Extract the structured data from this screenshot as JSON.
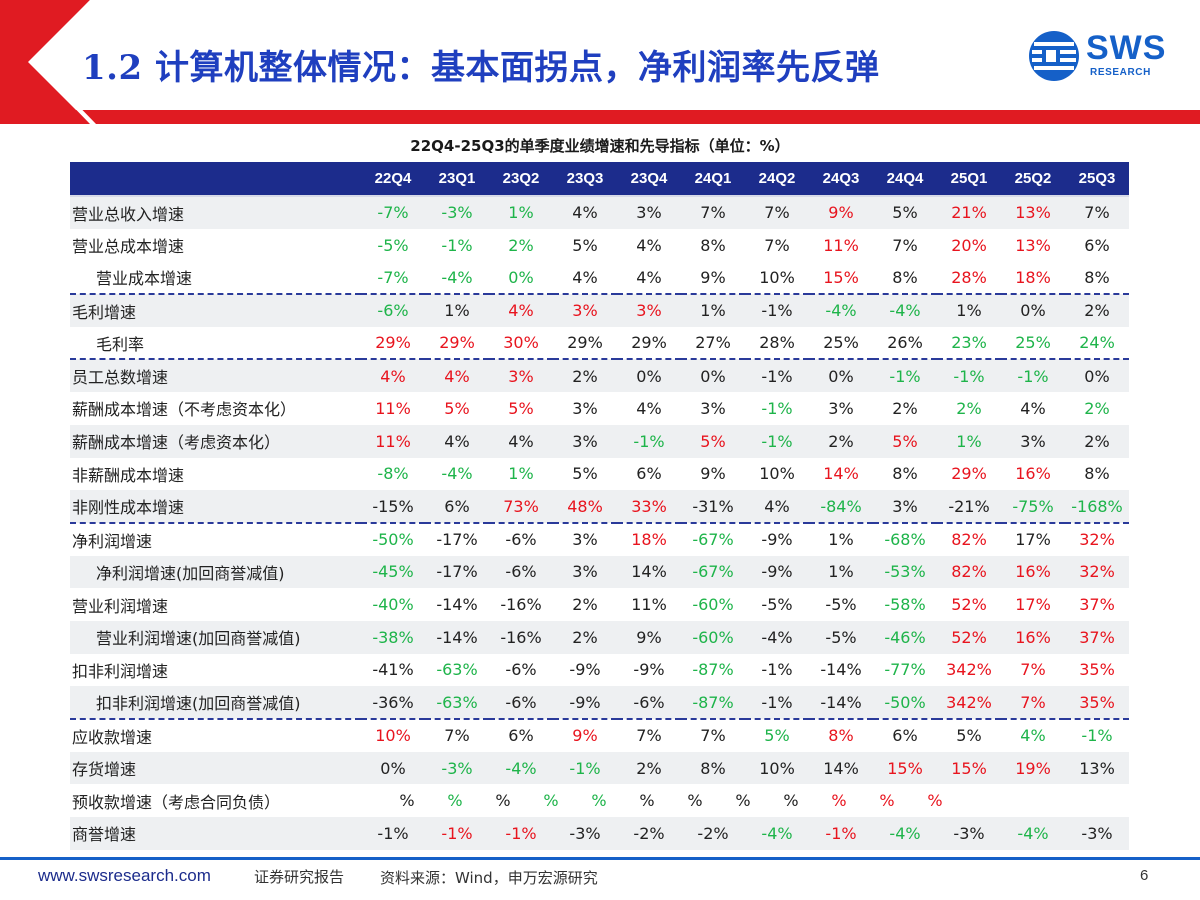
{
  "title": "1.2 计算机整体情况：基本面拐点，净利润率先反弹",
  "logo": {
    "main": "SWS",
    "sub": "RESEARCH"
  },
  "table_title": "22Q4-25Q3的单季度业绩增速和先导指标（单位：%）",
  "columns": [
    "22Q4",
    "23Q1",
    "23Q2",
    "23Q3",
    "23Q4",
    "24Q1",
    "24Q2",
    "24Q3",
    "24Q4",
    "25Q1",
    "25Q2",
    "25Q3"
  ],
  "rows": [
    {
      "label": "营业总收入增速",
      "indent": false,
      "shade": true,
      "dash": false,
      "cells": [
        {
          "v": "-7%",
          "c": "g"
        },
        {
          "v": "-3%",
          "c": "g"
        },
        {
          "v": "1%",
          "c": "g"
        },
        {
          "v": "4%",
          "c": "n"
        },
        {
          "v": "3%",
          "c": "n"
        },
        {
          "v": "7%",
          "c": "n"
        },
        {
          "v": "7%",
          "c": "n"
        },
        {
          "v": "9%",
          "c": "r"
        },
        {
          "v": "5%",
          "c": "n"
        },
        {
          "v": "21%",
          "c": "r"
        },
        {
          "v": "13%",
          "c": "r"
        },
        {
          "v": "7%",
          "c": "n"
        }
      ]
    },
    {
      "label": "营业总成本增速",
      "indent": false,
      "shade": false,
      "dash": false,
      "cells": [
        {
          "v": "-5%",
          "c": "g"
        },
        {
          "v": "-1%",
          "c": "g"
        },
        {
          "v": "2%",
          "c": "g"
        },
        {
          "v": "5%",
          "c": "n"
        },
        {
          "v": "4%",
          "c": "n"
        },
        {
          "v": "8%",
          "c": "n"
        },
        {
          "v": "7%",
          "c": "n"
        },
        {
          "v": "11%",
          "c": "r"
        },
        {
          "v": "7%",
          "c": "n"
        },
        {
          "v": "20%",
          "c": "r"
        },
        {
          "v": "13%",
          "c": "r"
        },
        {
          "v": "6%",
          "c": "n"
        }
      ]
    },
    {
      "label": "营业成本增速",
      "indent": true,
      "shade": false,
      "dash": true,
      "cells": [
        {
          "v": "-7%",
          "c": "g"
        },
        {
          "v": "-4%",
          "c": "g"
        },
        {
          "v": "0%",
          "c": "g"
        },
        {
          "v": "4%",
          "c": "n"
        },
        {
          "v": "4%",
          "c": "n"
        },
        {
          "v": "9%",
          "c": "n"
        },
        {
          "v": "10%",
          "c": "n"
        },
        {
          "v": "15%",
          "c": "r"
        },
        {
          "v": "8%",
          "c": "n"
        },
        {
          "v": "28%",
          "c": "r"
        },
        {
          "v": "18%",
          "c": "r"
        },
        {
          "v": "8%",
          "c": "n"
        }
      ]
    },
    {
      "label": "毛利增速",
      "indent": false,
      "shade": true,
      "dash": false,
      "cells": [
        {
          "v": "-6%",
          "c": "g"
        },
        {
          "v": "1%",
          "c": "n"
        },
        {
          "v": "4%",
          "c": "r"
        },
        {
          "v": "3%",
          "c": "r"
        },
        {
          "v": "3%",
          "c": "r"
        },
        {
          "v": "1%",
          "c": "n"
        },
        {
          "v": "-1%",
          "c": "n"
        },
        {
          "v": "-4%",
          "c": "g"
        },
        {
          "v": "-4%",
          "c": "g"
        },
        {
          "v": "1%",
          "c": "n"
        },
        {
          "v": "0%",
          "c": "n"
        },
        {
          "v": "2%",
          "c": "n"
        }
      ]
    },
    {
      "label": "毛利率",
      "indent": true,
      "shade": false,
      "dash": true,
      "cells": [
        {
          "v": "29%",
          "c": "r"
        },
        {
          "v": "29%",
          "c": "r"
        },
        {
          "v": "30%",
          "c": "r"
        },
        {
          "v": "29%",
          "c": "n"
        },
        {
          "v": "29%",
          "c": "n"
        },
        {
          "v": "27%",
          "c": "n"
        },
        {
          "v": "28%",
          "c": "n"
        },
        {
          "v": "25%",
          "c": "n"
        },
        {
          "v": "26%",
          "c": "n"
        },
        {
          "v": "23%",
          "c": "g"
        },
        {
          "v": "25%",
          "c": "g"
        },
        {
          "v": "24%",
          "c": "g"
        }
      ]
    },
    {
      "label": "员工总数增速",
      "indent": false,
      "shade": true,
      "dash": false,
      "cells": [
        {
          "v": "4%",
          "c": "r"
        },
        {
          "v": "4%",
          "c": "r"
        },
        {
          "v": "3%",
          "c": "r"
        },
        {
          "v": "2%",
          "c": "n"
        },
        {
          "v": "0%",
          "c": "n"
        },
        {
          "v": "0%",
          "c": "n"
        },
        {
          "v": "-1%",
          "c": "n"
        },
        {
          "v": "0%",
          "c": "n"
        },
        {
          "v": "-1%",
          "c": "g"
        },
        {
          "v": "-1%",
          "c": "g"
        },
        {
          "v": "-1%",
          "c": "g"
        },
        {
          "v": "0%",
          "c": "n"
        }
      ]
    },
    {
      "label": "薪酬成本增速（不考虑资本化）",
      "indent": false,
      "shade": false,
      "dash": false,
      "cells": [
        {
          "v": "11%",
          "c": "r"
        },
        {
          "v": "5%",
          "c": "r"
        },
        {
          "v": "5%",
          "c": "r"
        },
        {
          "v": "3%",
          "c": "n"
        },
        {
          "v": "4%",
          "c": "n"
        },
        {
          "v": "3%",
          "c": "n"
        },
        {
          "v": "-1%",
          "c": "g"
        },
        {
          "v": "3%",
          "c": "n"
        },
        {
          "v": "2%",
          "c": "n"
        },
        {
          "v": "2%",
          "c": "g"
        },
        {
          "v": "4%",
          "c": "n"
        },
        {
          "v": "2%",
          "c": "g"
        }
      ]
    },
    {
      "label": "薪酬成本增速（考虑资本化）",
      "indent": false,
      "shade": true,
      "dash": false,
      "cells": [
        {
          "v": "11%",
          "c": "r"
        },
        {
          "v": "4%",
          "c": "n"
        },
        {
          "v": "4%",
          "c": "n"
        },
        {
          "v": "3%",
          "c": "n"
        },
        {
          "v": "-1%",
          "c": "g"
        },
        {
          "v": "5%",
          "c": "r"
        },
        {
          "v": "-1%",
          "c": "g"
        },
        {
          "v": "2%",
          "c": "n"
        },
        {
          "v": "5%",
          "c": "r"
        },
        {
          "v": "1%",
          "c": "g"
        },
        {
          "v": "3%",
          "c": "n"
        },
        {
          "v": "2%",
          "c": "n"
        }
      ]
    },
    {
      "label": "非薪酬成本增速",
      "indent": false,
      "shade": false,
      "dash": false,
      "cells": [
        {
          "v": "-8%",
          "c": "g"
        },
        {
          "v": "-4%",
          "c": "g"
        },
        {
          "v": "1%",
          "c": "g"
        },
        {
          "v": "5%",
          "c": "n"
        },
        {
          "v": "6%",
          "c": "n"
        },
        {
          "v": "9%",
          "c": "n"
        },
        {
          "v": "10%",
          "c": "n"
        },
        {
          "v": "14%",
          "c": "r"
        },
        {
          "v": "8%",
          "c": "n"
        },
        {
          "v": "29%",
          "c": "r"
        },
        {
          "v": "16%",
          "c": "r"
        },
        {
          "v": "8%",
          "c": "n"
        }
      ]
    },
    {
      "label": "非刚性成本增速",
      "indent": false,
      "shade": true,
      "dash": true,
      "cells": [
        {
          "v": "-15%",
          "c": "n"
        },
        {
          "v": "6%",
          "c": "n"
        },
        {
          "v": "73%",
          "c": "r"
        },
        {
          "v": "48%",
          "c": "r"
        },
        {
          "v": "33%",
          "c": "r"
        },
        {
          "v": "-31%",
          "c": "n"
        },
        {
          "v": "4%",
          "c": "n"
        },
        {
          "v": "-84%",
          "c": "g"
        },
        {
          "v": "3%",
          "c": "n"
        },
        {
          "v": "-21%",
          "c": "n"
        },
        {
          "v": "-75%",
          "c": "g"
        },
        {
          "v": "-168%",
          "c": "g"
        }
      ]
    },
    {
      "label": "净利润增速",
      "indent": false,
      "shade": false,
      "dash": false,
      "cells": [
        {
          "v": "-50%",
          "c": "g"
        },
        {
          "v": "-17%",
          "c": "n"
        },
        {
          "v": "-6%",
          "c": "n"
        },
        {
          "v": "3%",
          "c": "n"
        },
        {
          "v": "18%",
          "c": "r"
        },
        {
          "v": "-67%",
          "c": "g"
        },
        {
          "v": "-9%",
          "c": "n"
        },
        {
          "v": "1%",
          "c": "n"
        },
        {
          "v": "-68%",
          "c": "g"
        },
        {
          "v": "82%",
          "c": "r"
        },
        {
          "v": "17%",
          "c": "n"
        },
        {
          "v": "32%",
          "c": "r"
        }
      ]
    },
    {
      "label": "净利润增速(加回商誉减值)",
      "indent": true,
      "shade": true,
      "dash": false,
      "cells": [
        {
          "v": "-45%",
          "c": "g"
        },
        {
          "v": "-17%",
          "c": "n"
        },
        {
          "v": "-6%",
          "c": "n"
        },
        {
          "v": "3%",
          "c": "n"
        },
        {
          "v": "14%",
          "c": "n"
        },
        {
          "v": "-67%",
          "c": "g"
        },
        {
          "v": "-9%",
          "c": "n"
        },
        {
          "v": "1%",
          "c": "n"
        },
        {
          "v": "-53%",
          "c": "g"
        },
        {
          "v": "82%",
          "c": "r"
        },
        {
          "v": "16%",
          "c": "r"
        },
        {
          "v": "32%",
          "c": "r"
        }
      ]
    },
    {
      "label": "营业利润增速",
      "indent": false,
      "shade": false,
      "dash": false,
      "cells": [
        {
          "v": "-40%",
          "c": "g"
        },
        {
          "v": "-14%",
          "c": "n"
        },
        {
          "v": "-16%",
          "c": "n"
        },
        {
          "v": "2%",
          "c": "n"
        },
        {
          "v": "11%",
          "c": "n"
        },
        {
          "v": "-60%",
          "c": "g"
        },
        {
          "v": "-5%",
          "c": "n"
        },
        {
          "v": "-5%",
          "c": "n"
        },
        {
          "v": "-58%",
          "c": "g"
        },
        {
          "v": "52%",
          "c": "r"
        },
        {
          "v": "17%",
          "c": "r"
        },
        {
          "v": "37%",
          "c": "r"
        }
      ]
    },
    {
      "label": "营业利润增速(加回商誉减值)",
      "indent": true,
      "shade": true,
      "dash": false,
      "cells": [
        {
          "v": "-38%",
          "c": "g"
        },
        {
          "v": "-14%",
          "c": "n"
        },
        {
          "v": "-16%",
          "c": "n"
        },
        {
          "v": "2%",
          "c": "n"
        },
        {
          "v": "9%",
          "c": "n"
        },
        {
          "v": "-60%",
          "c": "g"
        },
        {
          "v": "-4%",
          "c": "n"
        },
        {
          "v": "-5%",
          "c": "n"
        },
        {
          "v": "-46%",
          "c": "g"
        },
        {
          "v": "52%",
          "c": "r"
        },
        {
          "v": "16%",
          "c": "r"
        },
        {
          "v": "37%",
          "c": "r"
        }
      ]
    },
    {
      "label": "扣非利润增速",
      "indent": false,
      "shade": false,
      "dash": false,
      "cells": [
        {
          "v": "-41%",
          "c": "n"
        },
        {
          "v": "-63%",
          "c": "g"
        },
        {
          "v": "-6%",
          "c": "n"
        },
        {
          "v": "-9%",
          "c": "n"
        },
        {
          "v": "-9%",
          "c": "n"
        },
        {
          "v": "-87%",
          "c": "g"
        },
        {
          "v": "-1%",
          "c": "n"
        },
        {
          "v": "-14%",
          "c": "n"
        },
        {
          "v": "-77%",
          "c": "g"
        },
        {
          "v": "342%",
          "c": "r"
        },
        {
          "v": "7%",
          "c": "r"
        },
        {
          "v": "35%",
          "c": "r"
        }
      ]
    },
    {
      "label": "扣非利润增速(加回商誉减值)",
      "indent": true,
      "shade": true,
      "dash": true,
      "cells": [
        {
          "v": "-36%",
          "c": "n"
        },
        {
          "v": "-63%",
          "c": "g"
        },
        {
          "v": "-6%",
          "c": "n"
        },
        {
          "v": "-9%",
          "c": "n"
        },
        {
          "v": "-6%",
          "c": "n"
        },
        {
          "v": "-87%",
          "c": "g"
        },
        {
          "v": "-1%",
          "c": "n"
        },
        {
          "v": "-14%",
          "c": "n"
        },
        {
          "v": "-50%",
          "c": "g"
        },
        {
          "v": "342%",
          "c": "r"
        },
        {
          "v": "7%",
          "c": "r"
        },
        {
          "v": "35%",
          "c": "r"
        }
      ]
    },
    {
      "label": "应收款增速",
      "indent": false,
      "shade": false,
      "dash": false,
      "cells": [
        {
          "v": "10%",
          "c": "r"
        },
        {
          "v": "7%",
          "c": "n"
        },
        {
          "v": "6%",
          "c": "n"
        },
        {
          "v": "9%",
          "c": "r"
        },
        {
          "v": "7%",
          "c": "n"
        },
        {
          "v": "7%",
          "c": "n"
        },
        {
          "v": "5%",
          "c": "g"
        },
        {
          "v": "8%",
          "c": "r"
        },
        {
          "v": "6%",
          "c": "n"
        },
        {
          "v": "5%",
          "c": "n"
        },
        {
          "v": "4%",
          "c": "g"
        },
        {
          "v": "-1%",
          "c": "g"
        }
      ]
    },
    {
      "label": "存货增速",
      "indent": false,
      "shade": true,
      "dash": false,
      "cells": [
        {
          "v": "0%",
          "c": "n"
        },
        {
          "v": "-3%",
          "c": "g"
        },
        {
          "v": "-4%",
          "c": "g"
        },
        {
          "v": "-1%",
          "c": "g"
        },
        {
          "v": "2%",
          "c": "n"
        },
        {
          "v": "8%",
          "c": "n"
        },
        {
          "v": "10%",
          "c": "n"
        },
        {
          "v": "14%",
          "c": "n"
        },
        {
          "v": "15%",
          "c": "r"
        },
        {
          "v": "15%",
          "c": "r"
        },
        {
          "v": "19%",
          "c": "r"
        },
        {
          "v": "13%",
          "c": "n"
        }
      ]
    },
    {
      "label": "预收款增速（考虑合同负债）",
      "indent": false,
      "shade": false,
      "dash": false,
      "pcts": [
        {
          "v": "%",
          "c": "n"
        },
        {
          "v": "%",
          "c": "g"
        },
        {
          "v": "%",
          "c": "n"
        },
        {
          "v": "%",
          "c": "g"
        },
        {
          "v": "%",
          "c": "g"
        },
        {
          "v": "%",
          "c": "n"
        },
        {
          "v": "%",
          "c": "n"
        },
        {
          "v": "%",
          "c": "n"
        },
        {
          "v": "%",
          "c": "n"
        },
        {
          "v": "%",
          "c": "r"
        },
        {
          "v": "%",
          "c": "r"
        },
        {
          "v": "%",
          "c": "r"
        }
      ]
    },
    {
      "label": "商誉增速",
      "indent": false,
      "shade": true,
      "dash": false,
      "cells": [
        {
          "v": "-1%",
          "c": "n"
        },
        {
          "v": "-1%",
          "c": "r"
        },
        {
          "v": "-1%",
          "c": "r"
        },
        {
          "v": "-3%",
          "c": "n"
        },
        {
          "v": "-2%",
          "c": "n"
        },
        {
          "v": "-2%",
          "c": "n"
        },
        {
          "v": "-4%",
          "c": "g"
        },
        {
          "v": "-1%",
          "c": "r"
        },
        {
          "v": "-4%",
          "c": "g"
        },
        {
          "v": "-3%",
          "c": "n"
        },
        {
          "v": "-4%",
          "c": "g"
        },
        {
          "v": "-3%",
          "c": "n"
        }
      ]
    }
  ],
  "footer": {
    "website": "www.swsresearch.com",
    "report": "证券研究报告",
    "source": "资料来源：Wind，申万宏源研究",
    "page": "6"
  },
  "colors": {
    "red": "#e8141e",
    "green": "#1eb44a",
    "header_blue": "#1c2c8c",
    "accent_red": "#e01b22"
  }
}
